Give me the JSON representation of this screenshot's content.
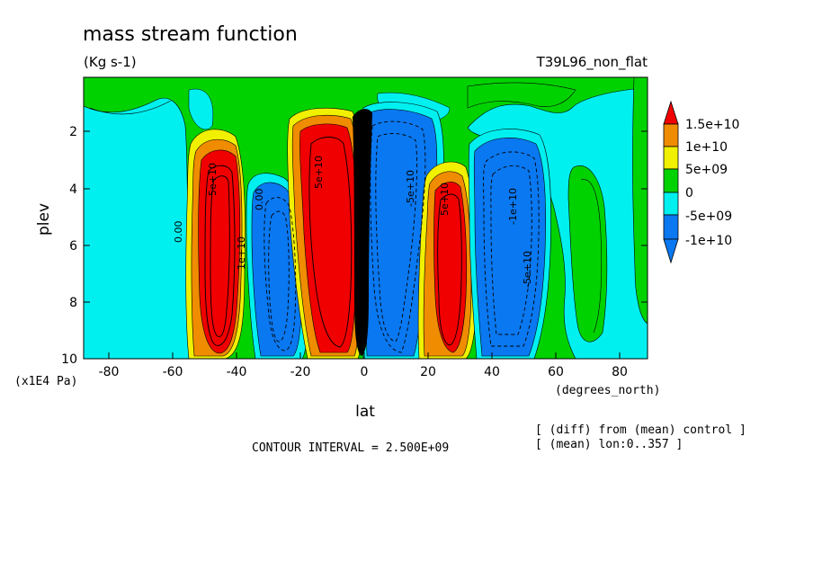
{
  "header": {
    "title": "mass stream function",
    "units": "(Kg s-1)",
    "run_label": "T39L96_non_flat",
    "contour_interval": "CONTOUR INTERVAL = 2.500E+09",
    "note_diff": "[ (diff) from (mean) control ]",
    "note_mean": "[ (mean) lon:0..357 ]"
  },
  "axes": {
    "xlabel": "lat",
    "xunit": "(degrees_north)",
    "ylabel": "plev",
    "yunit": "(x1E4 Pa)"
  },
  "colorbar": {
    "labels": [
      "1.5e+10",
      "1e+10",
      "5e+09",
      "0",
      "-5e+09",
      "-1e+10"
    ],
    "colors": [
      "#f00000",
      "#f08c00",
      "#f0f000",
      "#00d200",
      "#00f0f0",
      "#0a78f0",
      "#ff0000",
      "#0a00d0"
    ]
  },
  "chart_data": {
    "type": "heatmap",
    "title": "mass stream function",
    "subtitle": "(Kg s-1)",
    "xlabel": "lat",
    "ylabel": "plev",
    "xlim": [
      -90,
      88
    ],
    "ylim": [
      10,
      0
    ],
    "x_ticks": [
      -80,
      -60,
      -40,
      -20,
      0,
      20,
      40,
      60,
      80
    ],
    "x_tick_labels": [
      "-80",
      "-60",
      "-40",
      "-20",
      "0",
      "20",
      "40",
      "60",
      "80"
    ],
    "y_ticks": [
      2,
      4,
      6,
      8,
      10
    ],
    "y_tick_labels": [
      "2",
      "4",
      "6",
      "8",
      "10"
    ],
    "levels": [
      -10000000000,
      -5000000000,
      0,
      5000000000,
      10000000000,
      15000000000
    ],
    "cells": [
      {
        "lat_range": [
          -90,
          -62
        ],
        "plev_range": [
          0,
          10
        ],
        "sign": "negative",
        "approx_value": -2000000000
      },
      {
        "lat_range": [
          -55,
          -36
        ],
        "plev_range": [
          2,
          10
        ],
        "sign": "positive",
        "approx_value": 15000000000
      },
      {
        "lat_range": [
          -36,
          -22
        ],
        "plev_range": [
          3,
          10
        ],
        "sign": "negative",
        "approx_value": -10000000000
      },
      {
        "lat_range": [
          -20,
          -1
        ],
        "plev_range": [
          1.5,
          10
        ],
        "sign": "positive",
        "approx_value": 15000000000
      },
      {
        "lat_range": [
          1,
          18
        ],
        "plev_range": [
          1,
          10
        ],
        "sign": "negative",
        "approx_value": -10000000000
      },
      {
        "lat_range": [
          18,
          35
        ],
        "plev_range": [
          3,
          10
        ],
        "sign": "positive",
        "approx_value": 15000000000
      },
      {
        "lat_range": [
          33,
          60
        ],
        "plev_range": [
          1.5,
          10
        ],
        "sign": "negative",
        "approx_value": -10000000000
      }
    ],
    "contour_labels": [
      "0.00",
      "5e+10",
      "0.00",
      "1e+10",
      "5e+10",
      "-5e+10",
      "-1e+10",
      "-5e+10",
      "5e+10"
    ]
  }
}
